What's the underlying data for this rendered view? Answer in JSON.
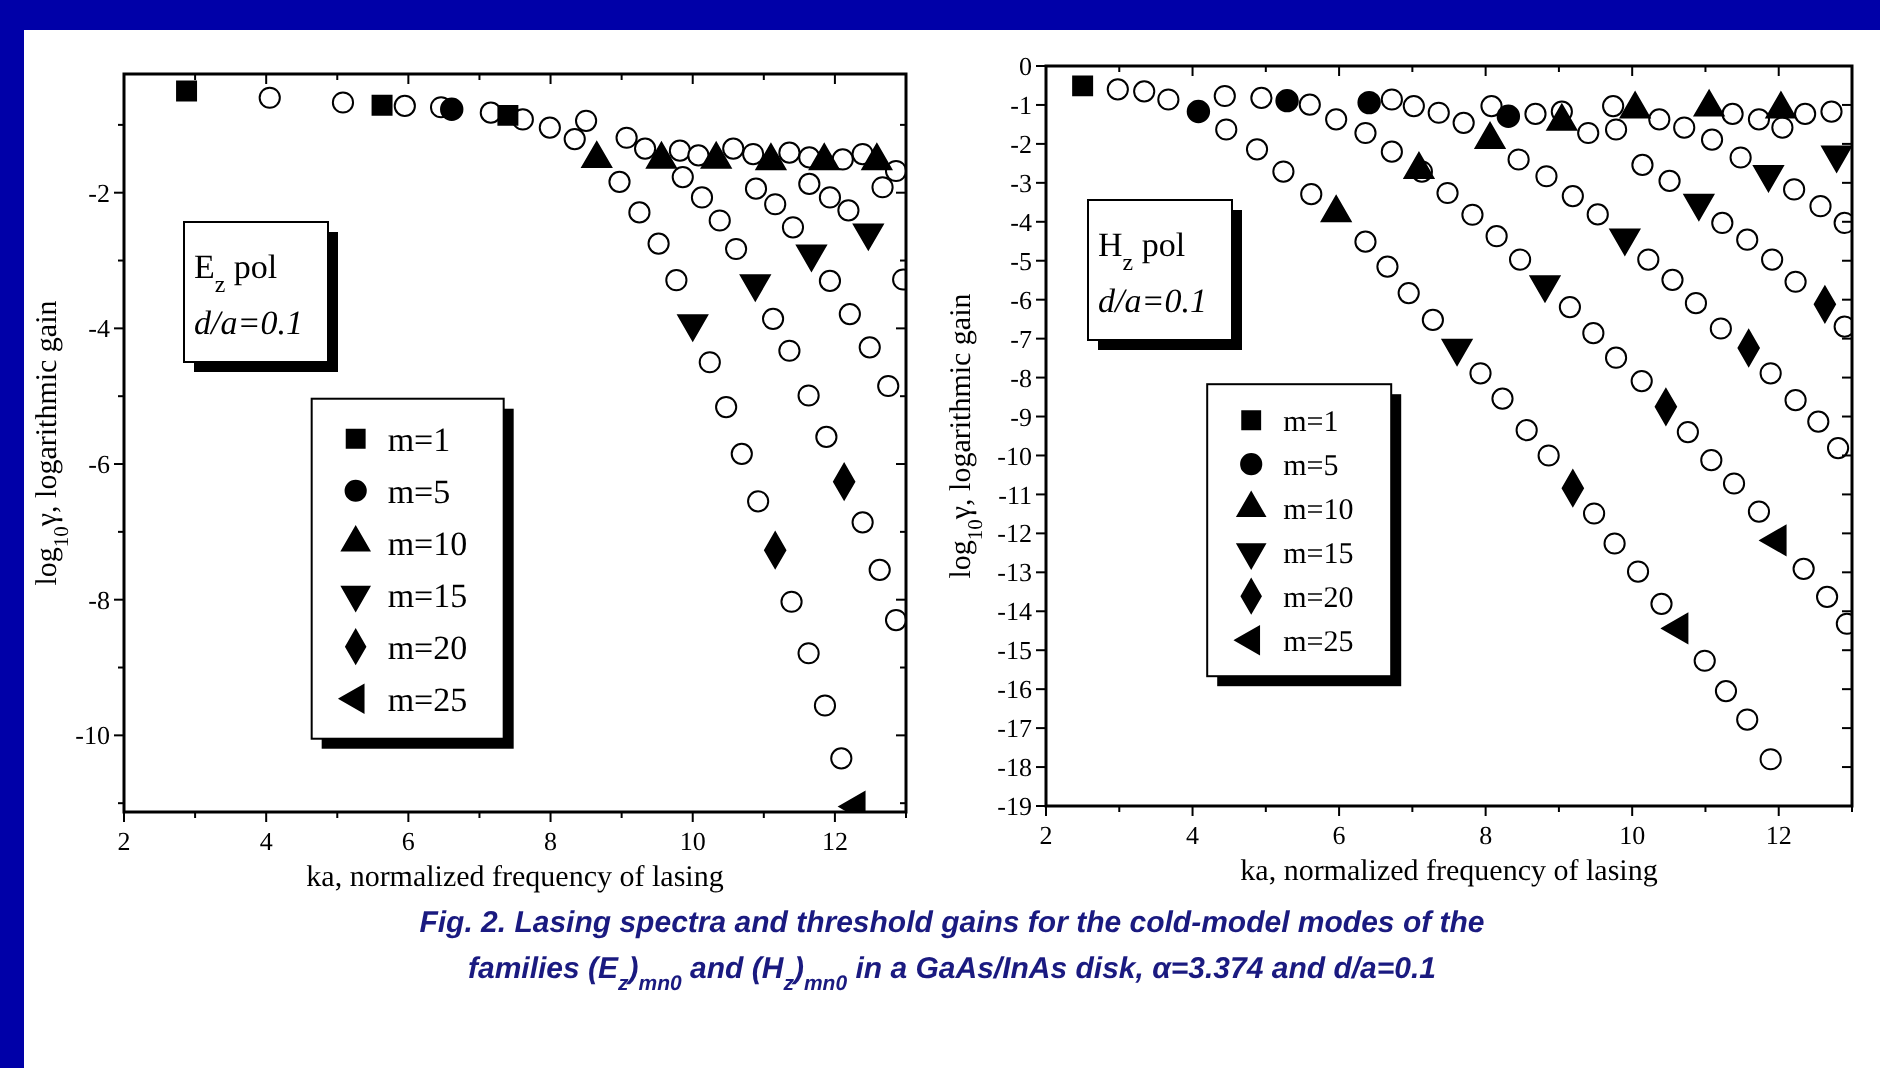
{
  "chart_data": [
    {
      "type": "scatter",
      "xlabel": "ka, normalized frequency of lasing",
      "ylabel": "log$_{10}$γ, logarithmic gain",
      "xlim": [
        2,
        13
      ],
      "ylim": [
        -11.13,
        -0.25
      ],
      "xticks": [
        2,
        {
          "value": 3,
          "label": null
        },
        4,
        {
          "value": 5,
          "label": null
        },
        6,
        {
          "value": 7,
          "label": null
        },
        8,
        {
          "value": 9,
          "label": null
        },
        10,
        {
          "value": 11,
          "label": null
        },
        12,
        {
          "value": 13,
          "label": null
        }
      ],
      "yticks": [
        {
          "value": -1,
          "label": null
        },
        -2,
        {
          "value": -3,
          "label": null
        },
        -4,
        {
          "value": -5,
          "label": null
        },
        -6,
        {
          "value": -7,
          "label": null
        },
        -8,
        {
          "value": -9,
          "label": null
        },
        -10,
        {
          "value": -11,
          "label": null
        }
      ],
      "grid": false,
      "legend": "bottom left",
      "annotations": [
        "E$_{z}$ pol",
        "d/a=0.1",
        "Fig. 2. Lasing spectra and threshold gains for the cold-model modes of the",
        "families (E$_{z}$)$_{mn0}$ and (H$_{z}$)$_{mn0}$ in a GaAs/InAs disk, α=3.374 and d/a=0.1"
      ],
      "series": [
        {
          "color": "#ffffff",
          "marker": "circle",
          "x": [
            4.05,
            5.08,
            5.95,
            6.46,
            7.16,
            7.61,
            7.99,
            8.34,
            8.5,
            8.97,
            9.07,
            9.25,
            9.33,
            9.52,
            9.77,
            9.82,
            9.86,
            10.08,
            10.13,
            10.24,
            10.38,
            10.47,
            10.57,
            10.61,
            10.69,
            10.85,
            10.89,
            10.92,
            11.13,
            11.16,
            11.36,
            11.36,
            11.39,
            11.41,
            11.63,
            11.63,
            11.64,
            11.64,
            11.86,
            11.88,
            11.93,
            11.93,
            12.09,
            12.11,
            12.19,
            12.21,
            12.39,
            12.39,
            12.49,
            12.63,
            12.67,
            12.75,
            12.86,
            12.86,
            12.96
          ],
          "values": [
            -0.6,
            -0.67,
            -0.72,
            -0.74,
            -0.82,
            -0.92,
            -1.04,
            -1.21,
            -0.94,
            -1.84,
            -1.19,
            -2.29,
            -1.35,
            -2.75,
            -3.29,
            -1.38,
            -1.77,
            -1.45,
            -2.07,
            -4.5,
            -2.41,
            -5.16,
            -1.35,
            -2.83,
            -5.85,
            -1.43,
            -1.94,
            -6.55,
            -3.86,
            -2.17,
            -4.33,
            -1.41,
            -8.03,
            -2.51,
            -4.99,
            -8.79,
            -1.87,
            -1.48,
            -9.56,
            -5.6,
            -3.3,
            -2.07,
            -10.34,
            -1.51,
            -2.26,
            -3.79,
            -6.86,
            -1.43,
            -4.28,
            -7.56,
            -1.92,
            -4.85,
            -8.3,
            -1.68,
            -3.28
          ]
        },
        {
          "name": "m=1",
          "color": "#000000",
          "marker": "square",
          "x": [
            2.88,
            5.63,
            7.4
          ],
          "values": [
            -0.5,
            -0.71,
            -0.86
          ]
        },
        {
          "name": "m=5",
          "color": "#000000",
          "marker": "circle",
          "x": [
            6.61
          ],
          "values": [
            -0.77
          ]
        },
        {
          "name": "m=10",
          "color": "#000000",
          "marker": "triangle",
          "x": [
            8.65,
            9.56,
            10.33,
            11.1,
            11.85,
            12.59
          ],
          "values": [
            -1.5,
            -1.51,
            -1.51,
            -1.53,
            -1.53,
            -1.53
          ]
        },
        {
          "name": "m=15",
          "color": "#000000",
          "marker": "triangle-down",
          "x": [
            10.0,
            10.88,
            11.67,
            12.47
          ],
          "values": [
            -3.93,
            -3.34,
            -2.9,
            -2.59
          ]
        },
        {
          "name": "m=20",
          "color": "#000000",
          "marker": "diamond",
          "x": [
            11.16,
            12.13
          ],
          "values": [
            -7.27,
            -6.26
          ]
        },
        {
          "name": "m=25",
          "color": "#000000",
          "marker": "triangle-left",
          "x": [
            12.3
          ],
          "values": [
            -11.05
          ]
        }
      ]
    },
    {
      "type": "scatter",
      "xlabel": "ka, normalized frequency of lasing",
      "ylabel": "log$_{10}$γ, logarithmic gain",
      "xlim": [
        2,
        13
      ],
      "ylim": [
        -19,
        0
      ],
      "xticks": [
        2,
        {
          "value": 3,
          "label": null
        },
        4,
        {
          "value": 5,
          "label": null
        },
        6,
        {
          "value": 7,
          "label": null
        },
        8,
        {
          "value": 9,
          "label": null
        },
        10,
        {
          "value": 11,
          "label": null
        },
        12,
        {
          "value": 13,
          "label": null
        }
      ],
      "yticks": [
        0,
        -1,
        -2,
        -3,
        -4,
        -5,
        -6,
        -7,
        -8,
        -9,
        -10,
        -11,
        -12,
        -13,
        -14,
        -15,
        -16,
        -17,
        -18,
        -19
      ],
      "grid": false,
      "legend": "left",
      "annotations": [
        "H$_{z}$ pol",
        "d/a=0.1"
      ],
      "series": [
        {
          "color": "#ffffff",
          "marker": "circle",
          "x": [
            2.98,
            3.34,
            3.67,
            4.44,
            4.46,
            4.88,
            4.94,
            5.24,
            5.6,
            5.62,
            5.96,
            6.36,
            6.36,
            6.66,
            6.72,
            6.72,
            6.95,
            7.02,
            7.13,
            7.28,
            7.36,
            7.48,
            7.7,
            7.82,
            7.93,
            8.08,
            8.15,
            8.23,
            8.45,
            8.47,
            8.56,
            8.68,
            8.83,
            8.86,
            9.04,
            9.15,
            9.19,
            9.4,
            9.47,
            9.48,
            9.53,
            9.74,
            9.76,
            9.78,
            9.78,
            10.08,
            10.13,
            10.14,
            10.22,
            10.37,
            10.4,
            10.51,
            10.55,
            10.71,
            10.76,
            10.87,
            10.99,
            11.08,
            11.09,
            11.21,
            11.23,
            11.28,
            11.37,
            11.39,
            11.48,
            11.57,
            11.57,
            11.73,
            11.73,
            11.89,
            11.89,
            11.91,
            12.05,
            12.21,
            12.23,
            12.23,
            12.34,
            12.36,
            12.54,
            12.57,
            12.66,
            12.72,
            12.81,
            12.9,
            12.9,
            12.93
          ],
          "values": [
            -0.6,
            -0.65,
            -0.86,
            -0.77,
            -1.63,
            -2.14,
            -0.82,
            -2.71,
            -0.99,
            -3.29,
            -1.37,
            -4.51,
            -1.72,
            -5.15,
            -2.2,
            -0.86,
            -5.83,
            -1.03,
            -2.71,
            -6.52,
            -1.2,
            -3.26,
            -1.46,
            -3.82,
            -7.89,
            -1.03,
            -4.37,
            -8.54,
            -2.4,
            -4.97,
            -9.35,
            -1.23,
            -2.83,
            -10.0,
            -1.17,
            -6.19,
            -3.34,
            -1.72,
            -6.86,
            -11.49,
            -3.81,
            -1.03,
            -12.26,
            -7.49,
            -1.63,
            -12.98,
            -8.09,
            -2.54,
            -4.97,
            -1.37,
            -13.81,
            -2.95,
            -5.49,
            -1.58,
            -9.4,
            -6.09,
            -15.27,
            -10.12,
            -1.89,
            -6.74,
            -4.03,
            -16.05,
            -1.23,
            -10.72,
            -2.35,
            -16.78,
            -4.46,
            -11.44,
            -1.37,
            -17.8,
            -7.89,
            -4.97,
            -1.58,
            -3.17,
            -8.58,
            -5.54,
            -12.91,
            -1.23,
            -9.13,
            -3.6,
            -13.63,
            -1.17,
            -9.81,
            -6.69,
            -4.03,
            -14.32
          ]
        },
        {
          "name": "m=1",
          "color": "#000000",
          "marker": "square",
          "x": [
            2.5
          ],
          "values": [
            -0.51
          ]
        },
        {
          "name": "m=5",
          "color": "#000000",
          "marker": "circle",
          "x": [
            4.08,
            5.29,
            6.41,
            8.31
          ],
          "values": [
            -1.17,
            -0.89,
            -0.94,
            -1.29
          ]
        },
        {
          "name": "m=10",
          "color": "#000000",
          "marker": "triangle",
          "x": [
            5.96,
            7.09,
            8.06,
            9.04,
            10.04,
            11.05,
            12.03
          ],
          "values": [
            -3.77,
            -2.66,
            -1.89,
            -1.42,
            -1.11,
            -1.06,
            -1.11
          ]
        },
        {
          "name": "m=15",
          "color": "#000000",
          "marker": "triangle-down",
          "x": [
            7.61,
            8.81,
            9.9,
            10.91,
            11.86,
            12.79
          ],
          "values": [
            -7.24,
            -5.61,
            -4.41,
            -3.52,
            -2.78,
            -2.28
          ]
        },
        {
          "name": "m=20",
          "color": "#000000",
          "marker": "diamond",
          "x": [
            9.19,
            10.46,
            11.59,
            12.63
          ],
          "values": [
            -10.84,
            -8.75,
            -7.24,
            -6.12
          ]
        },
        {
          "name": "m=25",
          "color": "#000000",
          "marker": "triangle-left",
          "x": [
            10.64,
            11.98
          ],
          "values": [
            -14.44,
            -12.18
          ]
        }
      ]
    }
  ]
}
